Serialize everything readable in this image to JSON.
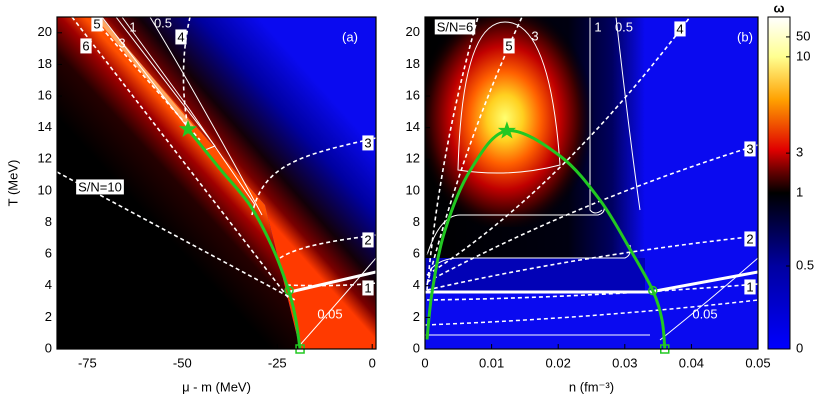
{
  "chart_data": [
    {
      "type": "heatmap",
      "panel_label": "(a)",
      "xlabel": "μ - m (MeV)",
      "ylabel": "T (MeV)",
      "xlim": [
        -83,
        1
      ],
      "xticks": [
        -75,
        -50,
        -25,
        0
      ],
      "ylim": [
        0,
        21
      ],
      "yticks": [
        0,
        2,
        4,
        6,
        8,
        10,
        12,
        14,
        16,
        18,
        20
      ],
      "omega_contours": [
        1,
        0.5,
        3,
        0.05
      ],
      "sn_contours": [
        5,
        6,
        4,
        3,
        2,
        1
      ],
      "annotation": "S/N=10",
      "curve": {
        "color": "#22c822",
        "x": [
          -48.5,
          -40.1,
          -32.2,
          -26.4,
          -22.4,
          -20.3,
          -19.0
        ],
        "y": [
          13.9,
          11.4,
          9.1,
          6.5,
          4.0,
          2.1,
          0
        ]
      },
      "markers": {
        "shapes": [
          "star",
          "circle",
          "square"
        ],
        "x": [
          -48.5,
          -21.9,
          -19.0
        ],
        "y": [
          13.9,
          3.7,
          0
        ]
      }
    },
    {
      "type": "heatmap",
      "panel_label": "(b)",
      "xlabel": "n (fm⁻³)",
      "xlim": [
        0,
        0.05
      ],
      "xticks": [
        0,
        0.01,
        0.02,
        0.03,
        0.04,
        0.05
      ],
      "ylim": [
        0,
        21
      ],
      "yticks": [
        0,
        2,
        4,
        6,
        8,
        10,
        12,
        14,
        16,
        18,
        20
      ],
      "omega_contours": [
        1,
        0.5,
        3,
        0.05
      ],
      "sn_contours": [
        5,
        4,
        3,
        2,
        1
      ],
      "annotation": "S/N=6",
      "curve": {
        "color": "#22c822",
        "x": [
          0.0003,
          0.0011,
          0.003,
          0.0068,
          0.0123,
          0.0203,
          0.0263,
          0.0308,
          0.0342,
          0.0356,
          0.036
        ],
        "y": [
          0.6,
          3.7,
          7.5,
          11.3,
          13.8,
          12.2,
          9.4,
          6.3,
          3.7,
          1.8,
          0
        ]
      },
      "markers": {
        "shapes": [
          "star",
          "circle",
          "square"
        ],
        "x": [
          0.0123,
          0.0342,
          0.036
        ],
        "y": [
          13.8,
          3.7,
          0
        ]
      }
    },
    {
      "type": "colorbar",
      "label": "ω",
      "ticks": [
        0,
        0.5,
        1,
        3,
        10,
        50
      ]
    }
  ]
}
